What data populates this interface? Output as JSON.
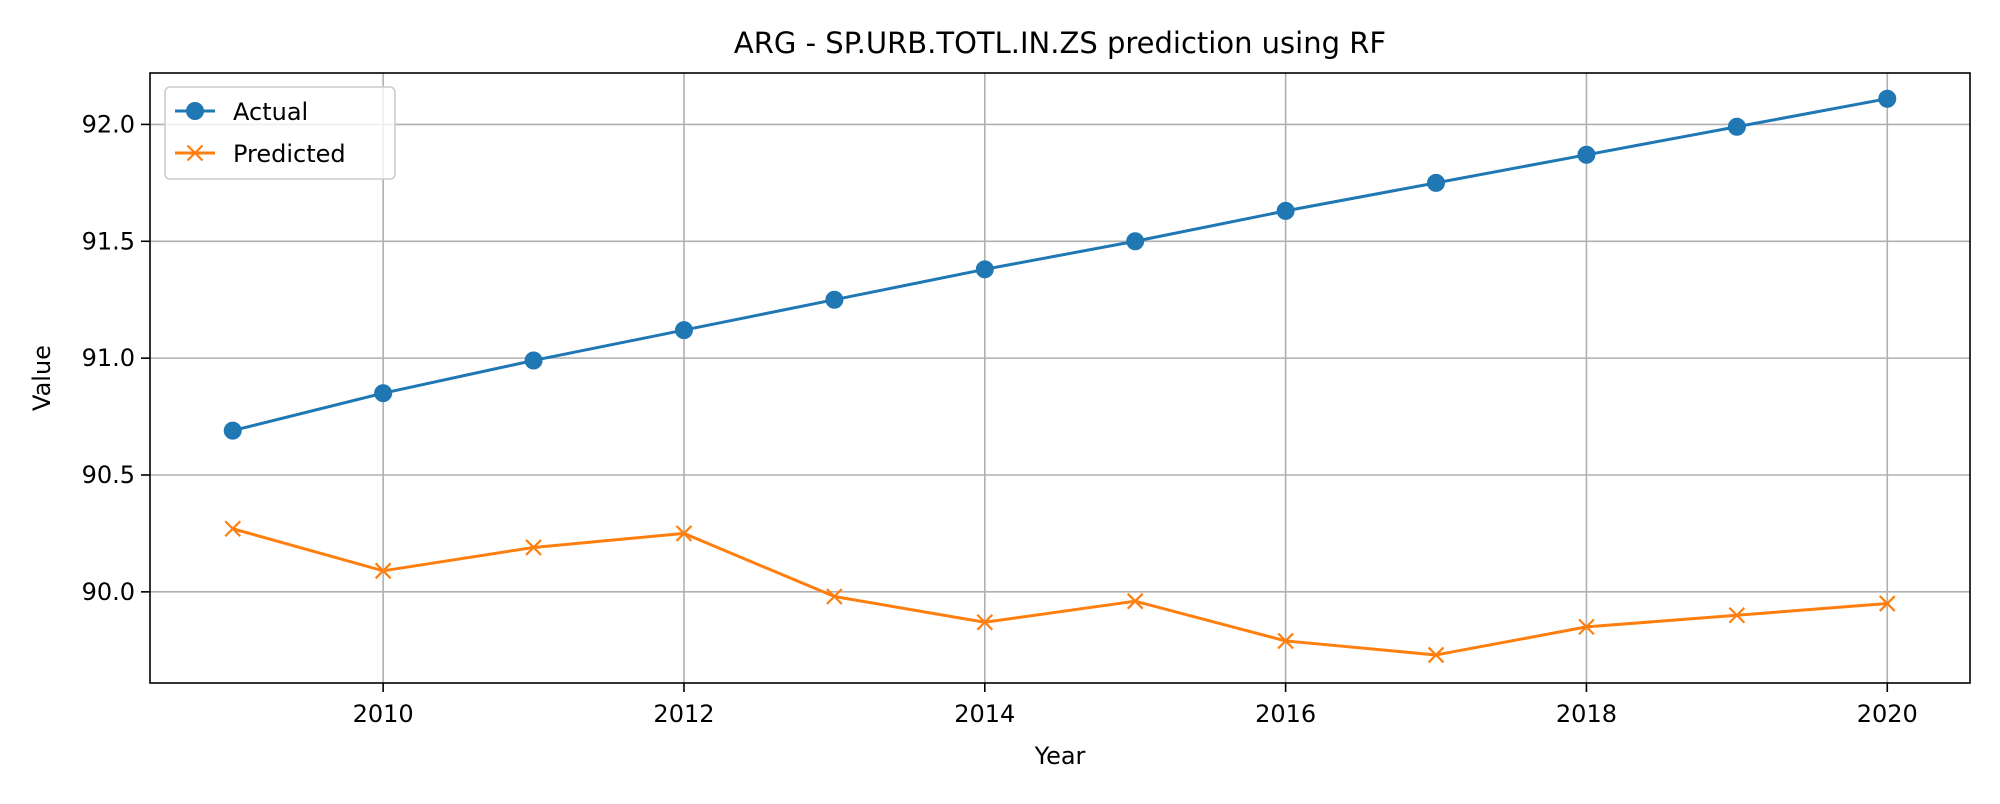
{
  "chart_data": {
    "type": "line",
    "title": "ARG - SP.URB.TOTL.IN.ZS prediction using RF",
    "xlabel": "Year",
    "ylabel": "Value",
    "x": [
      2009,
      2010,
      2011,
      2012,
      2013,
      2014,
      2015,
      2016,
      2017,
      2018,
      2019,
      2020
    ],
    "series": [
      {
        "name": "Actual",
        "color": "#1f77b4",
        "marker": "circle",
        "values": [
          90.69,
          90.85,
          90.99,
          91.12,
          91.25,
          91.38,
          91.5,
          91.63,
          91.75,
          91.87,
          91.99,
          92.11
        ]
      },
      {
        "name": "Predicted",
        "color": "#ff7f0e",
        "marker": "x",
        "values": [
          90.27,
          90.09,
          90.19,
          90.25,
          89.98,
          89.87,
          89.96,
          89.79,
          89.73,
          89.85,
          89.9,
          89.95
        ]
      }
    ],
    "xlim": [
      2008.45,
      2020.55
    ],
    "ylim": [
      89.61,
      92.22
    ],
    "xticks": [
      2010,
      2012,
      2014,
      2016,
      2018,
      2020
    ],
    "yticks": [
      90.0,
      90.5,
      91.0,
      91.5,
      92.0
    ],
    "ytick_labels": [
      "90.0",
      "90.5",
      "91.0",
      "91.5",
      "92.0"
    ],
    "grid": true,
    "legend": "top-left"
  }
}
